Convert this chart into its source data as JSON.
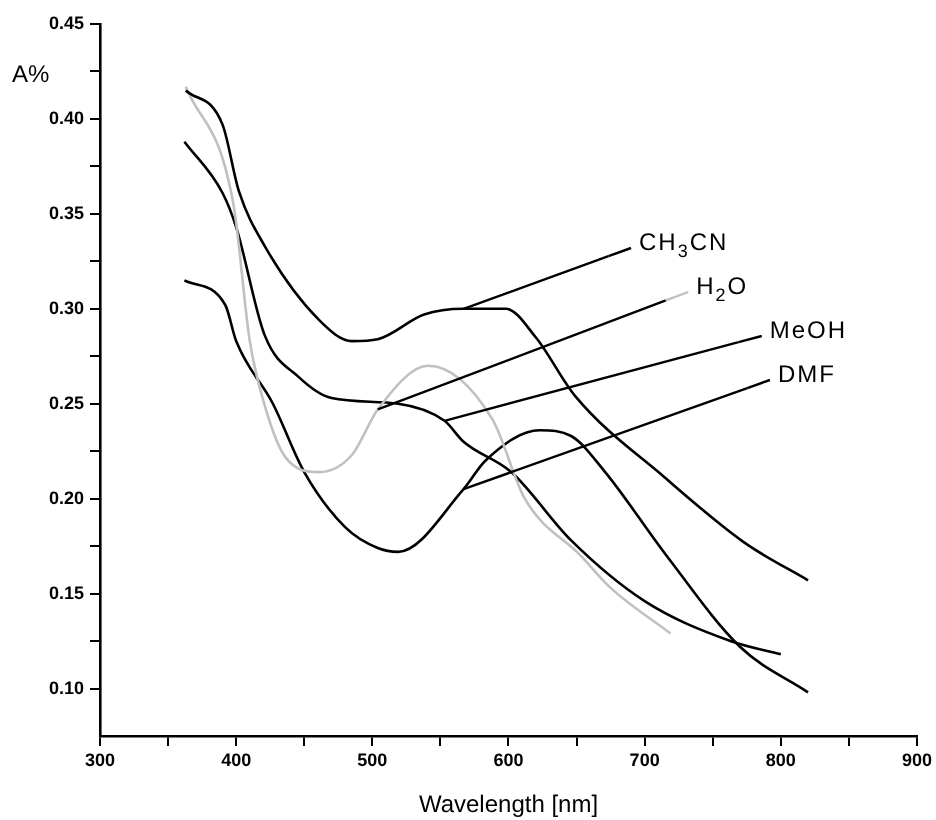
{
  "chart_data": {
    "type": "line",
    "xlabel": "Wavelength [nm]",
    "ylabel": "A%",
    "xlim": [
      300,
      900
    ],
    "ylim": [
      0.075,
      0.45
    ],
    "xticks": [
      300,
      {
        "value": 350,
        "label": null
      },
      400,
      {
        "value": 450,
        "label": null
      },
      500,
      {
        "value": 550,
        "label": null
      },
      600,
      {
        "value": 650,
        "label": null
      },
      700,
      {
        "value": 750,
        "label": null
      },
      800,
      {
        "value": 850,
        "label": null
      },
      900
    ],
    "yticks": [
      {
        "value": 0.1,
        "label": "0.10"
      },
      {
        "value": 0.125,
        "label": null
      },
      0.15,
      {
        "value": 0.175,
        "label": null
      },
      {
        "value": 0.2,
        "label": "0.20"
      },
      {
        "value": 0.225,
        "label": null
      },
      0.25,
      {
        "value": 0.275,
        "label": null
      },
      {
        "value": 0.3,
        "label": "0.30"
      },
      {
        "value": 0.325,
        "label": null
      },
      0.35,
      {
        "value": 0.375,
        "label": null
      },
      {
        "value": 0.4,
        "label": "0.40"
      },
      {
        "value": 0.425,
        "label": null
      },
      0.45
    ],
    "grid": false,
    "legend": "right",
    "marker": "none",
    "line_style": "solid",
    "series": [
      {
        "name": "CH$_{3}$CN",
        "color": "#000000",
        "x": [
          363,
          390,
          402,
          421,
          461,
          485,
          504,
          538,
          567,
          598,
          620,
          649,
          715,
          773,
          820
        ],
        "values": [
          0.415,
          0.397,
          0.362,
          0.333,
          0.294,
          0.283,
          0.284,
          0.297,
          0.3,
          0.3,
          0.285,
          0.254,
          0.211,
          0.177,
          0.157
        ]
      },
      {
        "name": "H$_{2}$O",
        "color": "#c0c0c0",
        "x": [
          363,
          398,
          410,
          421,
          436,
          461,
          485,
          504,
          541,
          588,
          612,
          653,
          675,
          719
        ],
        "values": [
          0.417,
          0.355,
          0.283,
          0.249,
          0.222,
          0.214,
          0.223,
          0.247,
          0.27,
          0.242,
          0.2,
          0.17,
          0.153,
          0.129
        ]
      },
      {
        "name": "MeOH",
        "color": "#000000",
        "x": [
          362,
          390,
          400,
          421,
          446,
          470,
          519,
          553,
          567,
          602,
          646,
          700,
          763,
          800
        ],
        "values": [
          0.388,
          0.361,
          0.343,
          0.286,
          0.264,
          0.253,
          0.25,
          0.241,
          0.23,
          0.214,
          0.178,
          0.146,
          0.125,
          0.118
        ]
      },
      {
        "name": "DMF",
        "color": "#000000",
        "x": [
          362,
          392,
          400,
          427,
          450,
          480,
          504,
          519,
          567,
          583,
          623,
          646,
          671,
          715,
          770,
          820
        ],
        "values": [
          0.315,
          0.302,
          0.283,
          0.25,
          0.214,
          0.185,
          0.174,
          0.172,
          0.205,
          0.22,
          0.236,
          0.233,
          0.214,
          0.171,
          0.122,
          0.098
        ]
      }
    ]
  }
}
